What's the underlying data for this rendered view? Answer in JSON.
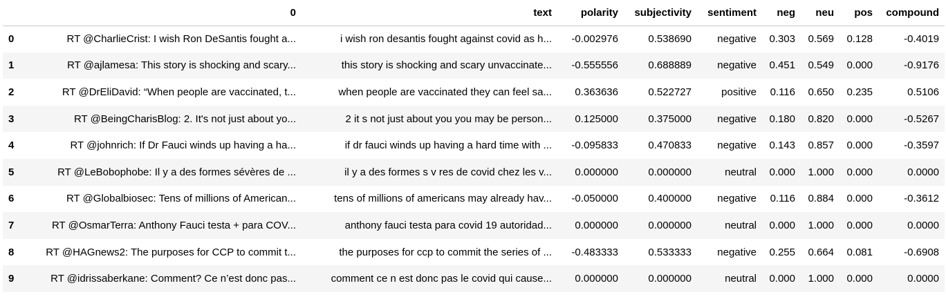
{
  "table": {
    "headers": [
      "",
      "0",
      "text",
      "polarity",
      "subjectivity",
      "sentiment",
      "neg",
      "neu",
      "pos",
      "compound"
    ],
    "rows": [
      [
        "0",
        "RT @CharlieCrist: I wish Ron DeSantis fought a...",
        "i wish ron desantis fought against covid as h...",
        "-0.002976",
        "0.538690",
        "negative",
        "0.303",
        "0.569",
        "0.128",
        "-0.4019"
      ],
      [
        "1",
        "RT @ajlamesa: This story is shocking and scary...",
        "this story is shocking and scary unvaccinate...",
        "-0.555556",
        "0.688889",
        "negative",
        "0.451",
        "0.549",
        "0.000",
        "-0.9176"
      ],
      [
        "2",
        "RT @DrEliDavid: “When people are vaccinated, t...",
        "when people are vaccinated they can feel sa...",
        "0.363636",
        "0.522727",
        "positive",
        "0.116",
        "0.650",
        "0.235",
        "0.5106"
      ],
      [
        "3",
        "RT @BeingCharisBlog: 2. It's not just about yo...",
        "2 it s not just about you you may be person...",
        "0.125000",
        "0.375000",
        "negative",
        "0.180",
        "0.820",
        "0.000",
        "-0.5267"
      ],
      [
        "4",
        "RT @johnrich: If Dr Fauci winds up having a ha...",
        "if dr fauci winds up having a hard time with ...",
        "-0.095833",
        "0.470833",
        "negative",
        "0.143",
        "0.857",
        "0.000",
        "-0.3597"
      ],
      [
        "5",
        "RT @LeBobophobe: Il y a des formes sévères de ...",
        "il y a des formes s v res de covid chez les v...",
        "0.000000",
        "0.000000",
        "neutral",
        "0.000",
        "1.000",
        "0.000",
        "0.0000"
      ],
      [
        "6",
        "RT @Globalbiosec: Tens of millions of American...",
        "tens of millions of americans may already hav...",
        "-0.050000",
        "0.400000",
        "negative",
        "0.116",
        "0.884",
        "0.000",
        "-0.3612"
      ],
      [
        "7",
        "RT @OsmarTerra: Anthony Fauci testa + para COV...",
        "anthony fauci testa para covid 19 autoridad...",
        "0.000000",
        "0.000000",
        "neutral",
        "0.000",
        "1.000",
        "0.000",
        "0.0000"
      ],
      [
        "8",
        "RT @HAGnews2: The purposes for CCP to commit t...",
        "the purposes for ccp to commit the series of ...",
        "-0.483333",
        "0.533333",
        "negative",
        "0.255",
        "0.664",
        "0.081",
        "-0.6908"
      ],
      [
        "9",
        "RT @idrissaberkane: Comment? Ce n’est donc pas...",
        "comment ce n est donc pas le covid qui cause...",
        "0.000000",
        "0.000000",
        "neutral",
        "0.000",
        "1.000",
        "0.000",
        "0.0000"
      ]
    ]
  }
}
